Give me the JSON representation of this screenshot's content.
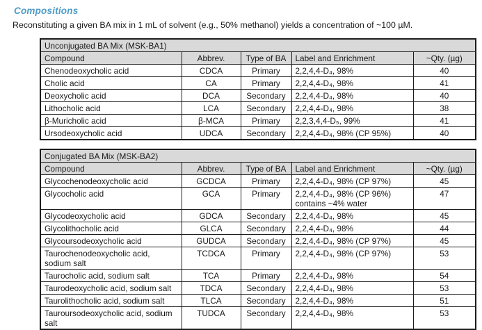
{
  "page": {
    "title": "Compositions",
    "intro": "Reconstituting a given BA mix in 1 mL of solvent (e.g., 50% methanol) yields a concentration of ~100 µM."
  },
  "colors": {
    "accent": "#4d9bc7",
    "header_bg": "#d9d9d9",
    "border": "#1c1c1c"
  },
  "tables": [
    {
      "title": "Unconjugated BA Mix (MSK-BA1)",
      "columns": [
        "Compound",
        "Abbrev.",
        "Type of BA",
        "Label and Enrichment",
        "~Qty. (µg)"
      ],
      "rows": [
        {
          "compound": "Chenodeoxycholic acid",
          "abbrev": "CDCA",
          "type": "Primary",
          "label": "2,2,4,4-D₄, 98%",
          "qty": "40"
        },
        {
          "compound": "Cholic acid",
          "abbrev": "CA",
          "type": "Primary",
          "label": "2,2,4,4-D₄, 98%",
          "qty": "41"
        },
        {
          "compound": "Deoxycholic acid",
          "abbrev": "DCA",
          "type": "Secondary",
          "label": "2,2,4,4-D₄, 98%",
          "qty": "40"
        },
        {
          "compound": "Lithocholic acid",
          "abbrev": "LCA",
          "type": "Secondary",
          "label": "2,2,4,4-D₄, 98%",
          "qty": "38"
        },
        {
          "compound": "β-Muricholic acid",
          "abbrev": "β-MCA",
          "type": "Primary",
          "label": "2,2,3,4,4-D₅, 99%",
          "qty": "41"
        },
        {
          "compound": "Ursodeoxycholic acid",
          "abbrev": "UDCA",
          "type": "Secondary",
          "label": "2,2,4,4-D₄, 98% (CP 95%)",
          "qty": "40"
        }
      ]
    },
    {
      "title": "Conjugated BA Mix (MSK-BA2)",
      "columns": [
        "Compound",
        "Abbrev.",
        "Type of BA",
        "Label and Enrichment",
        "~Qty. (µg)"
      ],
      "rows": [
        {
          "compound": "Glycochenodeoxycholic acid",
          "abbrev": "GCDCA",
          "type": "Primary",
          "label": "2,2,4,4-D₄, 98% (CP 97%)",
          "qty": "45"
        },
        {
          "compound": "Glycocholic acid",
          "abbrev": "GCA",
          "type": "Primary",
          "label": "2,2,4,4-D₄, 98% (CP 96%)\ncontains ~4% water",
          "qty": "47"
        },
        {
          "compound": "Glycodeoxycholic acid",
          "abbrev": "GDCA",
          "type": "Secondary",
          "label": "2,2,4,4-D₄, 98%",
          "qty": "45"
        },
        {
          "compound": "Glycolithocholic acid",
          "abbrev": "GLCA",
          "type": "Secondary",
          "label": "2,2,4,4-D₄, 98%",
          "qty": "44"
        },
        {
          "compound": "Glycoursodeoxycholic acid",
          "abbrev": "GUDCA",
          "type": "Secondary",
          "label": "2,2,4,4-D₄, 98% (CP 97%)",
          "qty": "45"
        },
        {
          "compound": "Taurochenodeoxycholic acid, sodium salt",
          "abbrev": "TCDCA",
          "type": "Primary",
          "label": "2,2,4,4-D₄, 98% (CP 97%)",
          "qty": "53"
        },
        {
          "compound": "Taurocholic acid, sodium salt",
          "abbrev": "TCA",
          "type": "Primary",
          "label": "2,2,4,4-D₄, 98%",
          "qty": "54"
        },
        {
          "compound": "Taurodeoxycholic acid, sodium salt",
          "abbrev": "TDCA",
          "type": "Secondary",
          "label": "2,2,4,4-D₄, 98%",
          "qty": "53"
        },
        {
          "compound": "Taurolithocholic acid, sodium salt",
          "abbrev": "TLCA",
          "type": "Secondary",
          "label": "2,2,4,4-D₄, 98%",
          "qty": "51"
        },
        {
          "compound": "Tauroursodeoxycholic acid, sodium salt",
          "abbrev": "TUDCA",
          "type": "Secondary",
          "label": "2,2,4,4-D₄, 98%",
          "qty": "53"
        }
      ]
    }
  ]
}
